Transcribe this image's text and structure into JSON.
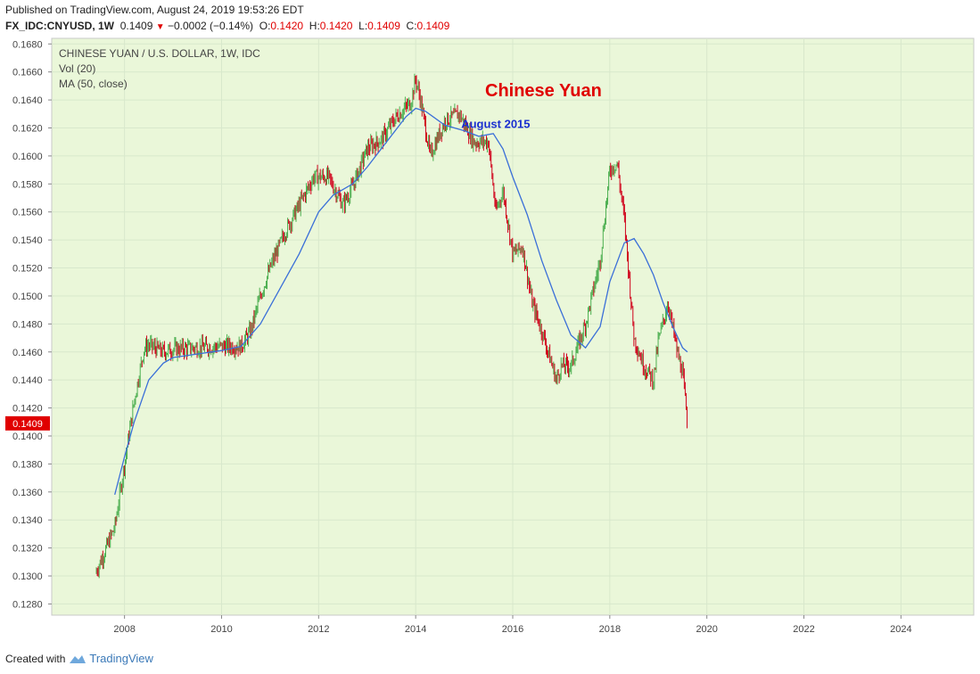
{
  "header": {
    "published": "Published on TradingView.com, August 24, 2019 19:53:26 EDT",
    "symbol": "FX_IDC:CNYUSD, 1W",
    "last": "0.1409",
    "change": "−0.0002 (−0.14%)",
    "o_label": "O:",
    "o_value": "0.1420",
    "h_label": "H:",
    "h_value": "0.1420",
    "l_label": "L:",
    "l_value": "0.1409",
    "c_label": "C:",
    "c_value": "0.1409"
  },
  "legend": {
    "title": "CHINESE YUAN / U.S. DOLLAR, 1W, IDC",
    "vol": "Vol (20)",
    "ma": "MA (50, close)"
  },
  "footer": {
    "created_with": "Created with",
    "brand": "TradingView"
  },
  "colors": {
    "background": "#eaf7d9",
    "up": "#4caf50",
    "down": "#d0021b",
    "ma": "#3a6fd8",
    "price_tag": "#e00000"
  },
  "chart_data": {
    "type": "line",
    "title": "Chinese Yuan",
    "annotations": [
      {
        "text": "August 2015",
        "x": 2015.6,
        "y": 0.162
      }
    ],
    "xlim": [
      2006.5,
      2025.5
    ],
    "ylim": [
      0.1272,
      0.1684
    ],
    "x_ticks": [
      "2008",
      "2010",
      "2012",
      "2014",
      "2016",
      "2018",
      "2020",
      "2022",
      "2024"
    ],
    "y_ticks": [
      "0.1280",
      "0.1300",
      "0.1320",
      "0.1340",
      "0.1360",
      "0.1380",
      "0.1400",
      "0.1420",
      "0.1440",
      "0.1460",
      "0.1480",
      "0.1500",
      "0.1520",
      "0.1540",
      "0.1560",
      "0.1580",
      "0.1600",
      "0.1620",
      "0.1640",
      "0.1660",
      "0.1680"
    ],
    "last_price_label": "0.1409",
    "grid": true,
    "series": [
      {
        "values_kind": "price",
        "x": [
          2007.4,
          2007.6,
          2007.8,
          2008.0,
          2008.2,
          2008.4,
          2008.5,
          2008.8,
          2009.0,
          2009.5,
          2010.0,
          2010.4,
          2010.6,
          2010.8,
          2011.0,
          2011.3,
          2011.6,
          2011.9,
          2012.2,
          2012.5,
          2012.7,
          2013.0,
          2013.3,
          2013.6,
          2013.9,
          2014.0,
          2014.1,
          2014.3,
          2014.6,
          2014.9,
          2015.2,
          2015.5,
          2015.65,
          2015.8,
          2016.0,
          2016.2,
          2016.4,
          2016.6,
          2016.9,
          2017.0,
          2017.2,
          2017.5,
          2017.8,
          2018.0,
          2018.15,
          2018.3,
          2018.5,
          2018.7,
          2018.9,
          2019.0,
          2019.2,
          2019.4,
          2019.5,
          2019.6
        ],
        "values": [
          0.1302,
          0.1318,
          0.1335,
          0.138,
          0.1425,
          0.1462,
          0.1465,
          0.146,
          0.1462,
          0.1463,
          0.1464,
          0.1464,
          0.1475,
          0.15,
          0.152,
          0.1545,
          0.1565,
          0.1585,
          0.1585,
          0.1565,
          0.1578,
          0.1605,
          0.1612,
          0.1628,
          0.1638,
          0.1655,
          0.164,
          0.16,
          0.1625,
          0.163,
          0.161,
          0.161,
          0.156,
          0.1575,
          0.153,
          0.1535,
          0.1495,
          0.1475,
          0.144,
          0.145,
          0.145,
          0.148,
          0.1525,
          0.159,
          0.1595,
          0.1555,
          0.147,
          0.145,
          0.144,
          0.1468,
          0.1495,
          0.1458,
          0.1445,
          0.1409
        ]
      },
      {
        "name": "MA (50, close)",
        "x": [
          2007.8,
          2008.0,
          2008.2,
          2008.5,
          2008.8,
          2009.0,
          2009.4,
          2010.0,
          2010.4,
          2010.8,
          2011.2,
          2011.6,
          2011.8,
          2012.0,
          2012.3,
          2012.7,
          2013.0,
          2013.4,
          2013.8,
          2014.0,
          2014.2,
          2014.6,
          2015.0,
          2015.3,
          2015.6,
          2015.8,
          2016.0,
          2016.3,
          2016.6,
          2016.9,
          2017.2,
          2017.5,
          2017.8,
          2018.0,
          2018.3,
          2018.5,
          2018.7,
          2018.9,
          2019.1,
          2019.3,
          2019.5,
          2019.6
        ],
        "values": [
          0.1358,
          0.1385,
          0.141,
          0.144,
          0.1452,
          0.1456,
          0.1458,
          0.1461,
          0.1464,
          0.148,
          0.1505,
          0.153,
          0.1545,
          0.156,
          0.1572,
          0.158,
          0.1592,
          0.161,
          0.1628,
          0.1634,
          0.1632,
          0.1622,
          0.1618,
          0.1614,
          0.1616,
          0.1605,
          0.1585,
          0.1558,
          0.1525,
          0.1497,
          0.1472,
          0.1463,
          0.1478,
          0.151,
          0.1538,
          0.1541,
          0.153,
          0.1515,
          0.1495,
          0.1478,
          0.1463,
          0.146
        ]
      }
    ]
  }
}
